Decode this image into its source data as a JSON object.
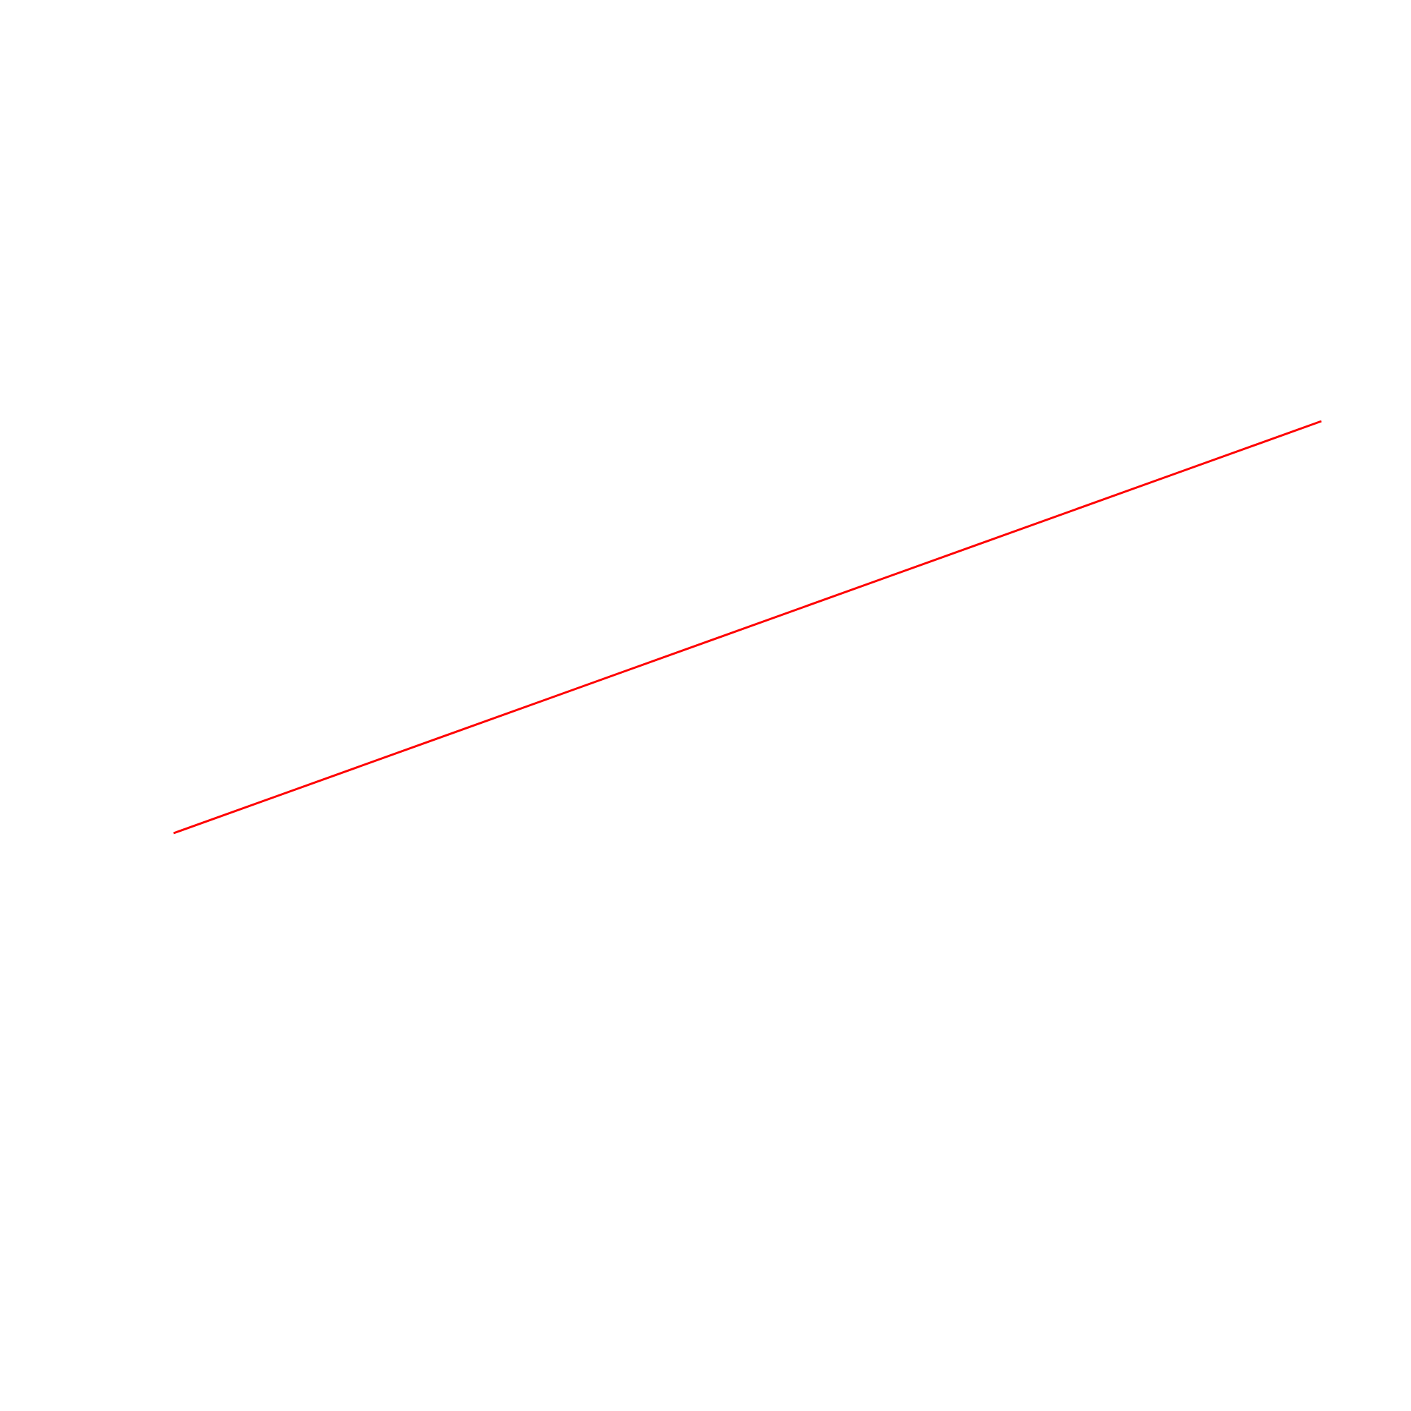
{
  "chart_data": {
    "type": "line",
    "title": "",
    "xlabel": "",
    "ylabel": "",
    "axes_visible": false,
    "grid": false,
    "legend": "none",
    "trend": "increasing",
    "series": [
      {
        "color": "#ff0000"
      }
    ]
  },
  "colors": {
    "background": "#ffffff",
    "line": "#ff0000"
  }
}
